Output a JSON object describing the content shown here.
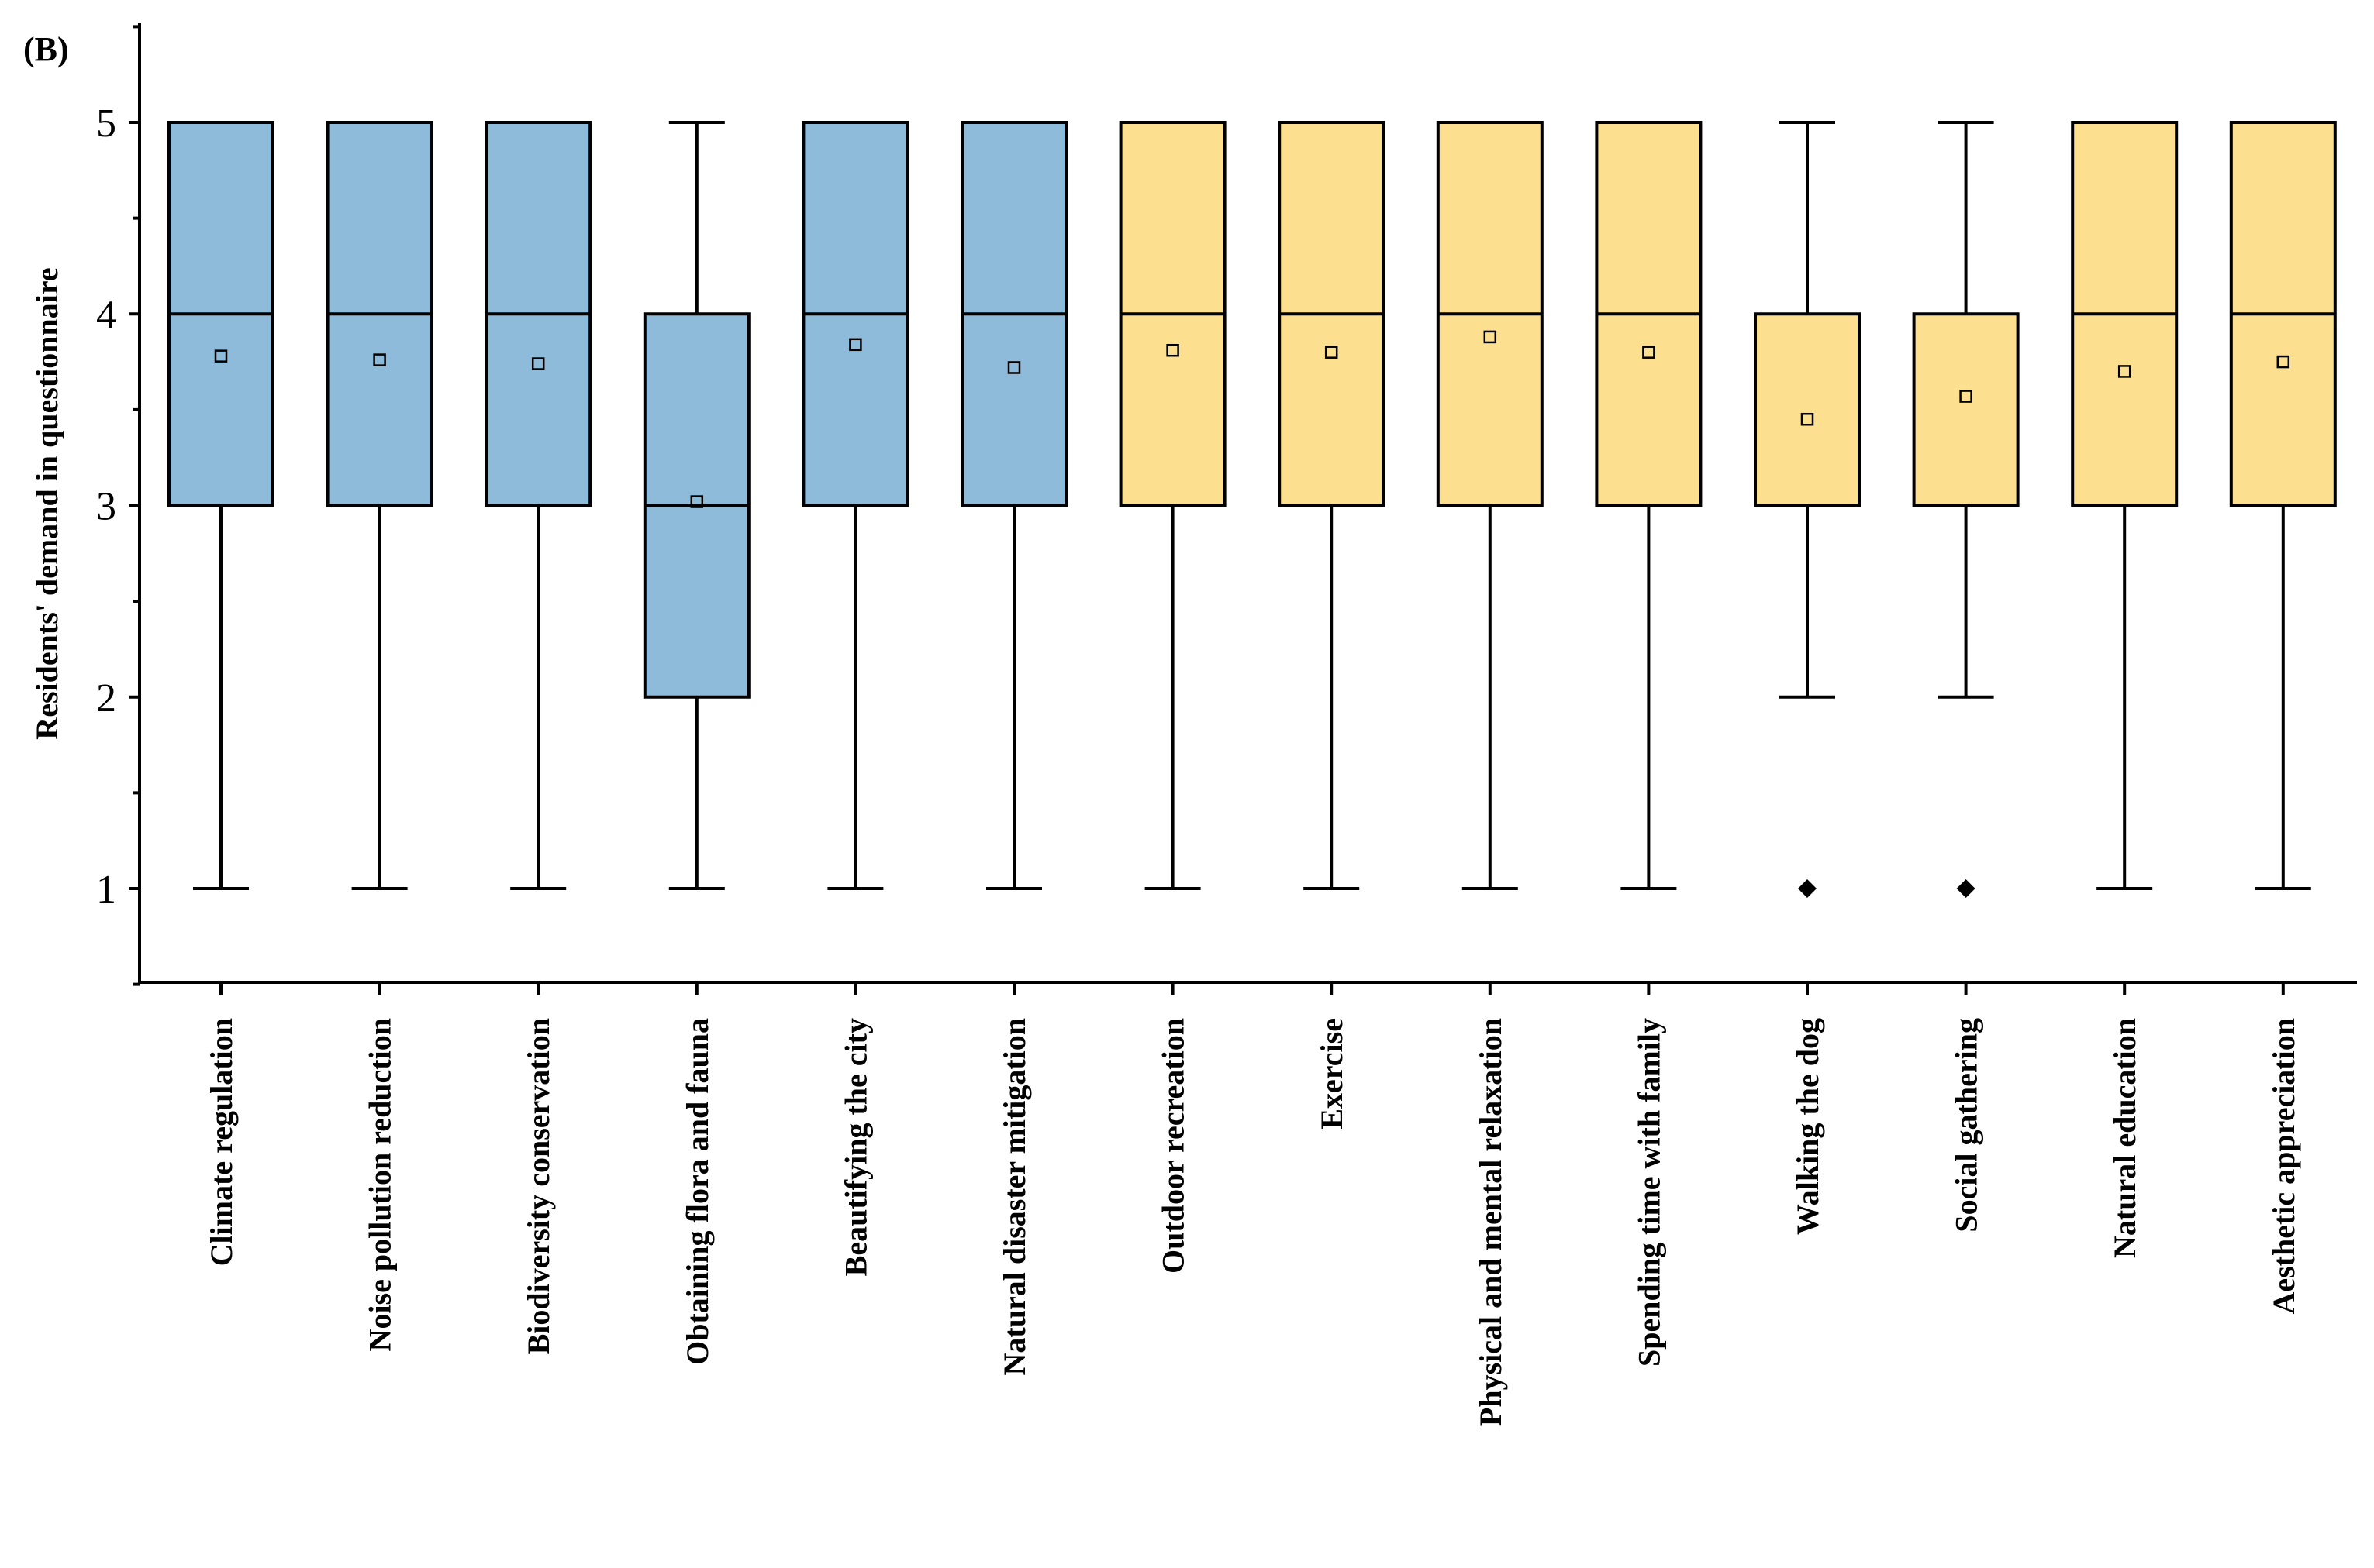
{
  "chart_data": {
    "type": "box",
    "panel_label": "(B)",
    "ylabel": "Residents' demand in questionnaire",
    "ylim": [
      0.5,
      5.5
    ],
    "yticks": [
      1,
      2,
      3,
      4,
      5
    ],
    "grid": false,
    "colors": {
      "group_a": "#8fbbdb",
      "group_b": "#fddf90"
    },
    "categories": [
      "Climate regulation",
      "Noise pollution reduction",
      "Biodiversity conservation",
      "Obtaining flora and fauna",
      "Beautifying the city",
      "Natural disaster mitigation",
      "Outdoor recreation",
      "Exercise",
      "Physical and mental relaxation",
      "Spending time with family",
      "Walking the dog",
      "Social gathering",
      "Natural education",
      "Aesthetic appreciation"
    ],
    "boxes": [
      {
        "group": "a",
        "min": 1,
        "q1": 3,
        "median": 4,
        "q3": 5,
        "max": 5,
        "mean": 3.78,
        "outliers": []
      },
      {
        "group": "a",
        "min": 1,
        "q1": 3,
        "median": 4,
        "q3": 5,
        "max": 5,
        "mean": 3.76,
        "outliers": []
      },
      {
        "group": "a",
        "min": 1,
        "q1": 3,
        "median": 4,
        "q3": 5,
        "max": 5,
        "mean": 3.74,
        "outliers": []
      },
      {
        "group": "a",
        "min": 1,
        "q1": 2,
        "median": 3,
        "q3": 4,
        "max": 5,
        "mean": 3.02,
        "outliers": []
      },
      {
        "group": "a",
        "min": 1,
        "q1": 3,
        "median": 4,
        "q3": 5,
        "max": 5,
        "mean": 3.84,
        "outliers": []
      },
      {
        "group": "a",
        "min": 1,
        "q1": 3,
        "median": 4,
        "q3": 5,
        "max": 5,
        "mean": 3.72,
        "outliers": []
      },
      {
        "group": "b",
        "min": 1,
        "q1": 3,
        "median": 4,
        "q3": 5,
        "max": 5,
        "mean": 3.81,
        "outliers": []
      },
      {
        "group": "b",
        "min": 1,
        "q1": 3,
        "median": 4,
        "q3": 5,
        "max": 5,
        "mean": 3.8,
        "outliers": []
      },
      {
        "group": "b",
        "min": 1,
        "q1": 3,
        "median": 4,
        "q3": 5,
        "max": 5,
        "mean": 3.88,
        "outliers": []
      },
      {
        "group": "b",
        "min": 1,
        "q1": 3,
        "median": 4,
        "q3": 5,
        "max": 5,
        "mean": 3.8,
        "outliers": []
      },
      {
        "group": "b",
        "min": 2,
        "q1": 3,
        "median": 3,
        "q3": 4,
        "max": 5,
        "mean": 3.45,
        "outliers": [
          1
        ]
      },
      {
        "group": "b",
        "min": 2,
        "q1": 3,
        "median": 3,
        "q3": 4,
        "max": 5,
        "mean": 3.57,
        "outliers": [
          1
        ]
      },
      {
        "group": "b",
        "min": 1,
        "q1": 3,
        "median": 4,
        "q3": 5,
        "max": 5,
        "mean": 3.7,
        "outliers": []
      },
      {
        "group": "b",
        "min": 1,
        "q1": 3,
        "median": 4,
        "q3": 5,
        "max": 5,
        "mean": 3.75,
        "outliers": []
      }
    ]
  }
}
